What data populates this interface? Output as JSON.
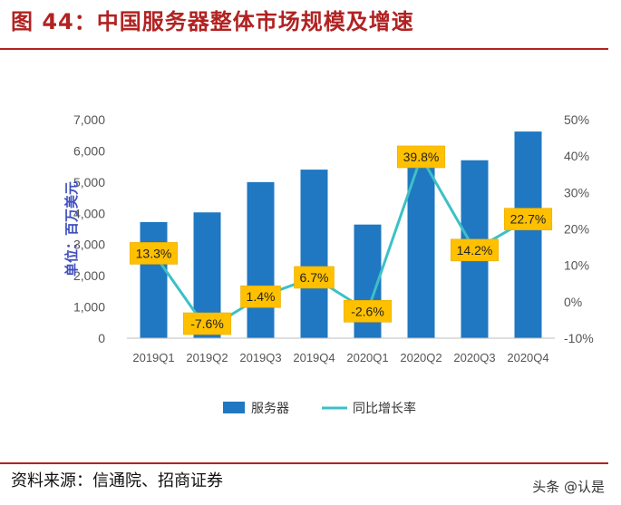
{
  "title": "图 44：中国服务器整体市场规模及增速",
  "source": "资料来源：信通院、招商证券",
  "watermark": "头条 @认是",
  "colors": {
    "bar": "#1f78c1",
    "line": "#3cc0c8",
    "label_bg": "#ffc000",
    "title": "#b22222"
  },
  "chart_data": {
    "type": "bar",
    "categories": [
      "2019Q1",
      "2019Q2",
      "2019Q3",
      "2019Q4",
      "2020Q1",
      "2020Q2",
      "2020Q3",
      "2020Q4"
    ],
    "series": [
      {
        "name": "服务器",
        "type": "bar",
        "axis": "left",
        "values": [
          3720,
          4030,
          5000,
          5400,
          3640,
          5620,
          5700,
          6620
        ]
      },
      {
        "name": "同比增长率",
        "type": "line",
        "axis": "right",
        "values": [
          13.3,
          -7.6,
          1.4,
          6.7,
          -2.6,
          39.8,
          14.2,
          22.7
        ],
        "labels": [
          "13.3%",
          "-7.6%",
          "1.4%",
          "6.7%",
          "-2.6%",
          "39.8%",
          "14.2%",
          "22.7%"
        ]
      }
    ],
    "ylabel": "单位：百万美元",
    "ylim": [
      0,
      7000
    ],
    "yticks": [
      "0",
      "1,000",
      "2,000",
      "3,000",
      "4,000",
      "5,000",
      "6,000",
      "7,000"
    ],
    "y2lim": [
      -10,
      50
    ],
    "y2ticks": [
      "-10%",
      "0%",
      "10%",
      "20%",
      "30%",
      "40%",
      "50%"
    ],
    "legend": "bottom",
    "grid": false
  }
}
